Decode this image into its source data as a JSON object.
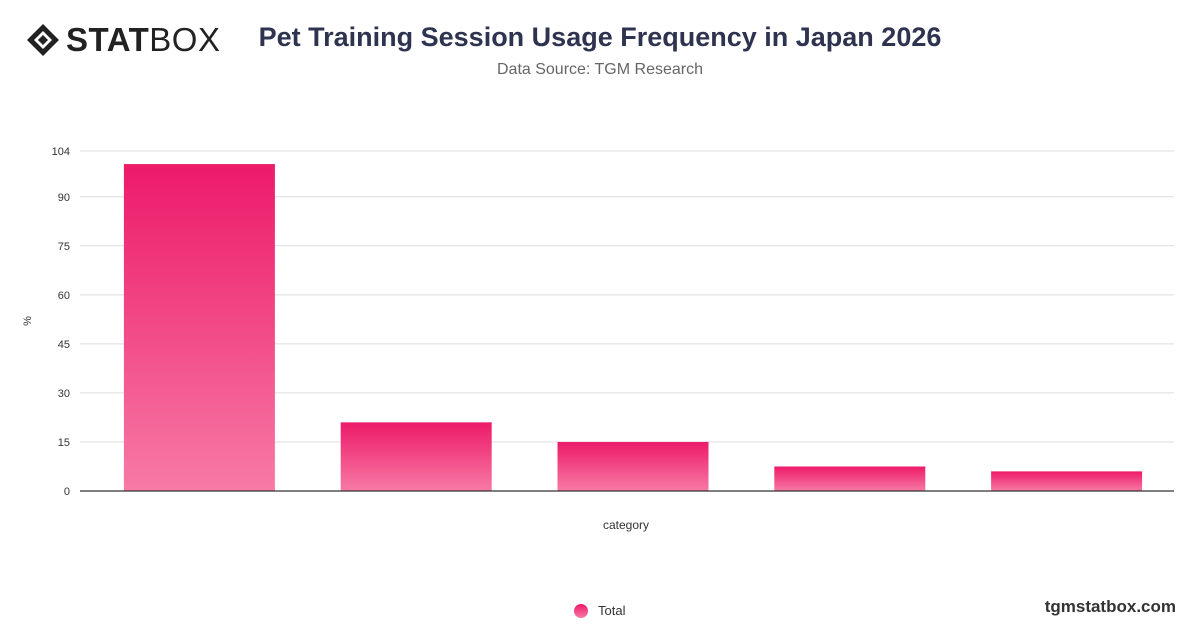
{
  "brand": {
    "bold": "STAT",
    "light": "BOX",
    "site": "tgmstatbox.com"
  },
  "colors": {
    "bar_top": "#ed1a69",
    "bar_bottom": "#f77aa5",
    "grid": "#dddddd",
    "axis": "#333333"
  },
  "chart_data": {
    "type": "bar",
    "title": "Pet Training Session Usage Frequency in Japan 2026",
    "subtitle": "Data Source: TGM Research",
    "xlabel": "category",
    "ylabel": "%",
    "yticks": [
      0,
      15,
      30,
      45,
      60,
      75,
      90,
      104
    ],
    "ylim": [
      0,
      104
    ],
    "grid": true,
    "legend_position": "bottom",
    "series": [
      {
        "name": "Total",
        "values": [
          100,
          21,
          15,
          7.5,
          6
        ]
      }
    ]
  }
}
